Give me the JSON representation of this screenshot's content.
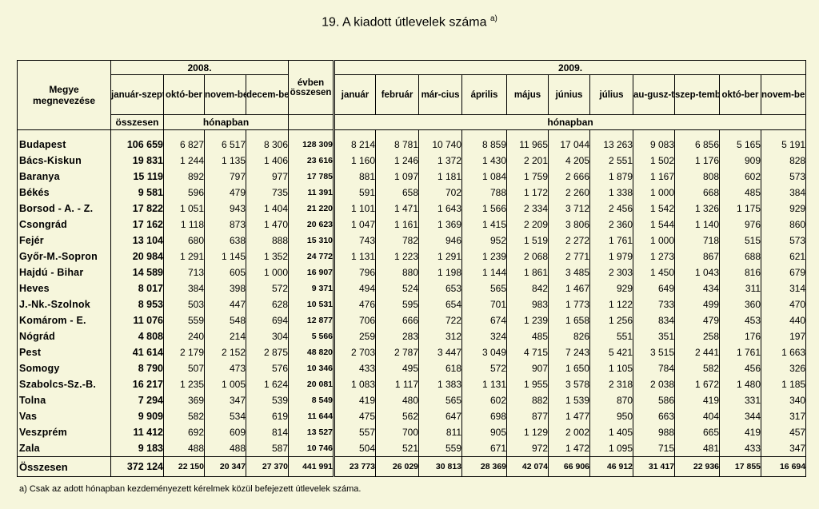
{
  "title": "19. A kiadott útlevelek száma",
  "title_sup": "a)",
  "header": {
    "megye": "Megye megnevezése",
    "year2008": "2008.",
    "year2009": "2009.",
    "jan_sep": "január-szeptem-ber",
    "osszesen": "összesen",
    "honapban": "hónapban",
    "evben": "évben összesen",
    "months2008": [
      "októ-ber",
      "novem-ber",
      "decem-ber"
    ],
    "months2009": [
      "január",
      "február",
      "már-cius",
      "április",
      "május",
      "június",
      "július",
      "au-gusz-tus",
      "szep-tember",
      "októ-ber",
      "novem-ber"
    ]
  },
  "rows": [
    {
      "name": "Budapest",
      "v": [
        "106 659",
        "6 827",
        "6 517",
        "8 306",
        "128 309",
        "8 214",
        "8 781",
        "10 740",
        "8 859",
        "11 965",
        "17 044",
        "13 263",
        "9 083",
        "6 856",
        "5 165",
        "5 191"
      ]
    },
    {
      "name": "Bács-Kiskun",
      "v": [
        "19 831",
        "1 244",
        "1 135",
        "1 406",
        "23 616",
        "1 160",
        "1 246",
        "1 372",
        "1 430",
        "2 201",
        "4 205",
        "2 551",
        "1 502",
        "1 176",
        "909",
        "828"
      ]
    },
    {
      "name": "Baranya",
      "v": [
        "15 119",
        "892",
        "797",
        "977",
        "17 785",
        "881",
        "1 097",
        "1 181",
        "1 084",
        "1 759",
        "2 666",
        "1 879",
        "1 167",
        "808",
        "602",
        "573"
      ]
    },
    {
      "name": "Békés",
      "v": [
        "9 581",
        "596",
        "479",
        "735",
        "11 391",
        "591",
        "658",
        "702",
        "788",
        "1 172",
        "2 260",
        "1 338",
        "1 000",
        "668",
        "485",
        "384"
      ]
    },
    {
      "name": "Borsod - A. - Z.",
      "v": [
        "17 822",
        "1 051",
        "943",
        "1 404",
        "21 220",
        "1 101",
        "1 471",
        "1 643",
        "1 566",
        "2 334",
        "3 712",
        "2 456",
        "1 542",
        "1 326",
        "1 175",
        "929"
      ]
    },
    {
      "name": "Csongrád",
      "v": [
        "17 162",
        "1 118",
        "873",
        "1 470",
        "20 623",
        "1 047",
        "1 161",
        "1 369",
        "1 415",
        "2 209",
        "3 806",
        "2 360",
        "1 544",
        "1 140",
        "976",
        "860"
      ]
    },
    {
      "name": "Fejér",
      "v": [
        "13 104",
        "680",
        "638",
        "888",
        "15 310",
        "743",
        "782",
        "946",
        "952",
        "1 519",
        "2 272",
        "1 761",
        "1 000",
        "718",
        "515",
        "573"
      ]
    },
    {
      "name": "Győr-M.-Sopron",
      "v": [
        "20 984",
        "1 291",
        "1 145",
        "1 352",
        "24 772",
        "1 131",
        "1 223",
        "1 291",
        "1 239",
        "2 068",
        "2 771",
        "1 979",
        "1 273",
        "867",
        "688",
        "621"
      ]
    },
    {
      "name": "Hajdú - Bihar",
      "v": [
        "14 589",
        "713",
        "605",
        "1 000",
        "16 907",
        "796",
        "880",
        "1 198",
        "1 144",
        "1 861",
        "3 485",
        "2 303",
        "1 450",
        "1 043",
        "816",
        "679"
      ]
    },
    {
      "name": "Heves",
      "v": [
        "8 017",
        "384",
        "398",
        "572",
        "9 371",
        "494",
        "524",
        "653",
        "565",
        "842",
        "1 467",
        "929",
        "649",
        "434",
        "311",
        "314"
      ]
    },
    {
      "name": "J.-Nk.-Szolnok",
      "v": [
        "8 953",
        "503",
        "447",
        "628",
        "10 531",
        "476",
        "595",
        "654",
        "701",
        "983",
        "1 773",
        "1 122",
        "733",
        "499",
        "360",
        "470"
      ]
    },
    {
      "name": "Komárom - E.",
      "v": [
        "11 076",
        "559",
        "548",
        "694",
        "12 877",
        "706",
        "666",
        "722",
        "674",
        "1 239",
        "1 658",
        "1 256",
        "834",
        "479",
        "453",
        "440"
      ]
    },
    {
      "name": "Nógrád",
      "v": [
        "4 808",
        "240",
        "214",
        "304",
        "5 566",
        "259",
        "283",
        "312",
        "324",
        "485",
        "826",
        "551",
        "351",
        "258",
        "176",
        "197"
      ]
    },
    {
      "name": "Pest",
      "v": [
        "41 614",
        "2 179",
        "2 152",
        "2 875",
        "48 820",
        "2 703",
        "2 787",
        "3 447",
        "3 049",
        "4 715",
        "7 243",
        "5 421",
        "3 515",
        "2 441",
        "1 761",
        "1 663"
      ]
    },
    {
      "name": "Somogy",
      "v": [
        "8 790",
        "507",
        "473",
        "576",
        "10 346",
        "433",
        "495",
        "618",
        "572",
        "907",
        "1 650",
        "1 105",
        "784",
        "582",
        "456",
        "326"
      ]
    },
    {
      "name": "Szabolcs-Sz.-B.",
      "v": [
        "16 217",
        "1 235",
        "1 005",
        "1 624",
        "20 081",
        "1 083",
        "1 117",
        "1 383",
        "1 131",
        "1 955",
        "3 578",
        "2 318",
        "2 038",
        "1 672",
        "1 480",
        "1 185"
      ]
    },
    {
      "name": "Tolna",
      "v": [
        "7 294",
        "369",
        "347",
        "539",
        "8 549",
        "419",
        "480",
        "565",
        "602",
        "882",
        "1 539",
        "870",
        "586",
        "419",
        "331",
        "340"
      ]
    },
    {
      "name": "Vas",
      "v": [
        "9 909",
        "582",
        "534",
        "619",
        "11 644",
        "475",
        "562",
        "647",
        "698",
        "877",
        "1 477",
        "950",
        "663",
        "404",
        "344",
        "317"
      ]
    },
    {
      "name": "Veszprém",
      "v": [
        "11 412",
        "692",
        "609",
        "814",
        "13 527",
        "557",
        "700",
        "811",
        "905",
        "1 129",
        "2 002",
        "1 405",
        "988",
        "665",
        "419",
        "457"
      ]
    },
    {
      "name": "Zala",
      "v": [
        "9 183",
        "488",
        "488",
        "587",
        "10 746",
        "504",
        "521",
        "559",
        "671",
        "972",
        "1 472",
        "1 095",
        "715",
        "481",
        "433",
        "347"
      ]
    }
  ],
  "total": {
    "name": "Összesen",
    "v": [
      "372 124",
      "22 150",
      "20 347",
      "27 370",
      "441 991",
      "23 773",
      "26 029",
      "30 813",
      "28 369",
      "42 074",
      "66 906",
      "46 912",
      "31 417",
      "22 936",
      "17 855",
      "16 694"
    ]
  },
  "footnote": "a) Csak az adott hónapban kezdeményezett kérelmek közül befejezett útlevelek száma."
}
